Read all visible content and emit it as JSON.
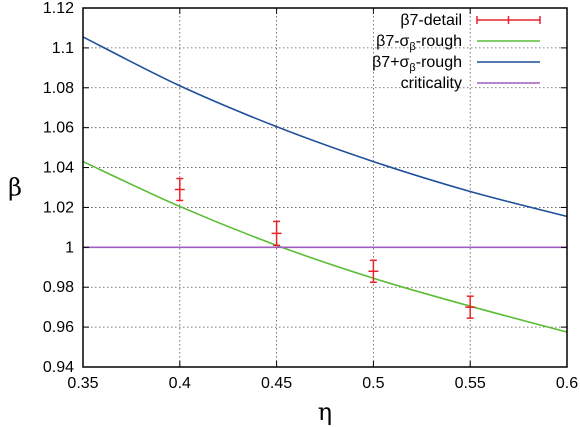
{
  "chart_data": {
    "type": "line",
    "xlabel": "η",
    "ylabel": "β",
    "xlim": [
      0.35,
      0.6
    ],
    "ylim": [
      0.94,
      1.12
    ],
    "grid": true,
    "legend_position": "top-right",
    "xticks": [
      "0.35",
      "0.4",
      "0.45",
      "0.5",
      "0.55",
      "0.6"
    ],
    "yticks": [
      "0.94",
      "0.96",
      "0.98",
      "1",
      "1.02",
      "1.04",
      "1.06",
      "1.08",
      "1.1",
      "1.12"
    ],
    "series": [
      {
        "name": "β7-detail",
        "legend_parts": [
          "β7-detail"
        ],
        "kind": "errorbar",
        "color": "#e8232b",
        "x": [
          0.4,
          0.45,
          0.5,
          0.55
        ],
        "y": [
          1.029,
          1.007,
          0.988,
          0.97
        ],
        "err": [
          0.0055,
          0.006,
          0.0055,
          0.0055
        ]
      },
      {
        "name": "β7-σβ-rough",
        "legend_parts": [
          "β7-σ",
          "β",
          "-rough"
        ],
        "kind": "line",
        "color": "#5bbc35",
        "x": [
          0.35,
          0.4,
          0.45,
          0.5,
          0.55,
          0.6
        ],
        "y": [
          1.043,
          1.0205,
          1.001,
          0.9845,
          0.9705,
          0.9575
        ]
      },
      {
        "name": "β7+σβ-rough",
        "legend_parts": [
          "β7+σ",
          "β",
          "-rough"
        ],
        "kind": "line",
        "color": "#1f4f9c",
        "x": [
          0.35,
          0.4,
          0.45,
          0.5,
          0.55,
          0.6
        ],
        "y": [
          1.1055,
          1.081,
          1.0605,
          1.043,
          1.028,
          1.0155
        ]
      },
      {
        "name": "criticality",
        "legend_parts": [
          "criticality"
        ],
        "kind": "line",
        "color": "#a25cbf",
        "x": [
          0.35,
          0.6
        ],
        "y": [
          1.0,
          1.0
        ]
      }
    ]
  }
}
